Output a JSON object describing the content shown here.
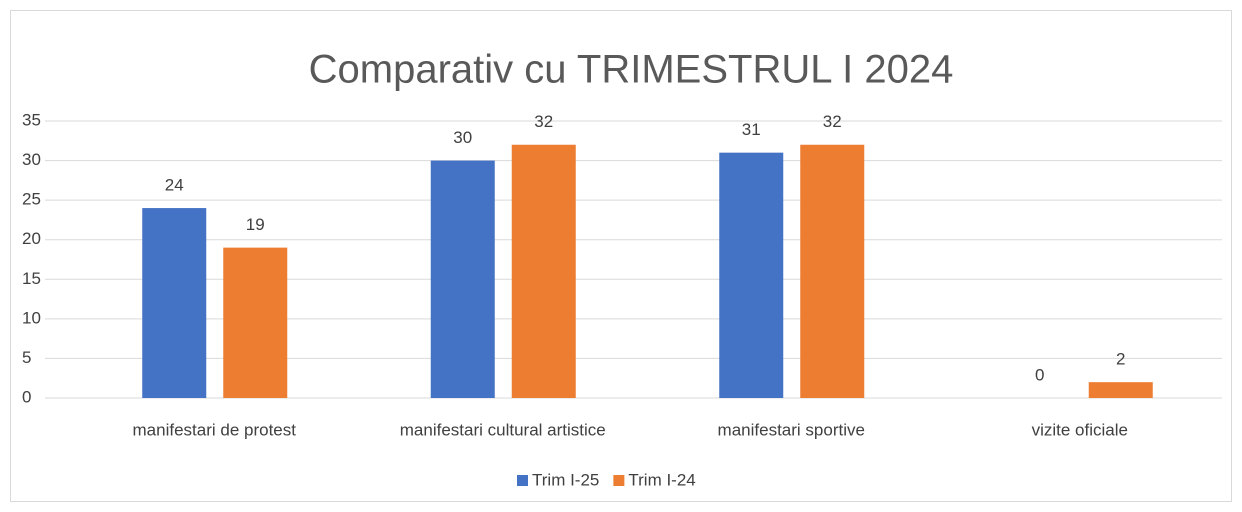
{
  "chart_data": {
    "type": "bar",
    "title": "Comparativ cu TRIMESTRUL I 2024",
    "categories": [
      "manifestari de protest",
      "manifestari cultural artistice",
      "manifestari sportive",
      "vizite oficiale"
    ],
    "series": [
      {
        "name": "Trim I-25",
        "color": "#4472c4",
        "values": [
          24,
          30,
          31,
          0
        ]
      },
      {
        "name": "Trim I-24",
        "color": "#ed7d31",
        "values": [
          19,
          32,
          32,
          2
        ]
      }
    ],
    "ylim": [
      0,
      35
    ],
    "yticks": [
      0,
      5,
      10,
      15,
      20,
      25,
      30,
      35
    ],
    "grid": true,
    "legend": "bottom"
  }
}
